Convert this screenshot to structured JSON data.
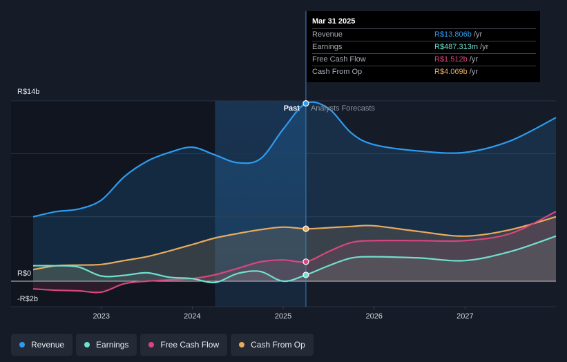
{
  "chart_data": {
    "type": "area",
    "y_unit_prefix": "R$",
    "y_tick_labels": [
      "R$14b",
      "R$0",
      "-R$2b"
    ],
    "ylim": [
      -2,
      14
    ],
    "x_tick_labels": [
      "2023",
      "2024",
      "2025",
      "2026",
      "2027"
    ],
    "xlim": [
      2022.25,
      2028.0
    ],
    "divider_x": 2025.25,
    "past_shade_start": 2024.25,
    "region_labels": {
      "past": "Past",
      "forecast": "Analysts Forecasts"
    },
    "colors": {
      "revenue": "#2d9cf0",
      "earnings": "#6fe0d0",
      "free_cash_flow": "#d9467e",
      "cash_from_op": "#e8ab5e"
    },
    "series": [
      {
        "key": "revenue",
        "name": "Revenue",
        "x": [
          2022.25,
          2022.5,
          2022.75,
          2023.0,
          2023.25,
          2023.5,
          2023.75,
          2024.0,
          2024.25,
          2024.5,
          2024.75,
          2025.0,
          2025.25,
          2025.5,
          2025.75,
          2026.0,
          2026.5,
          2027.0,
          2027.5,
          2028.0
        ],
        "values": [
          5.0,
          5.4,
          5.6,
          6.3,
          8.1,
          9.3,
          10.0,
          10.4,
          9.8,
          9.2,
          9.5,
          11.8,
          13.806,
          13.4,
          11.5,
          10.6,
          10.1,
          10.0,
          10.9,
          12.7
        ]
      },
      {
        "key": "earnings",
        "name": "Earnings",
        "x": [
          2022.25,
          2022.5,
          2022.75,
          2023.0,
          2023.25,
          2023.5,
          2023.75,
          2024.0,
          2024.25,
          2024.5,
          2024.75,
          2025.0,
          2025.25,
          2025.5,
          2025.75,
          2026.0,
          2026.5,
          2027.0,
          2027.5,
          2028.0
        ],
        "values": [
          1.2,
          1.2,
          1.1,
          0.4,
          0.45,
          0.65,
          0.3,
          0.2,
          -0.1,
          0.6,
          0.75,
          0.0,
          0.487,
          1.2,
          1.8,
          1.9,
          1.8,
          1.6,
          2.3,
          3.5
        ]
      },
      {
        "key": "free_cash_flow",
        "name": "Free Cash Flow",
        "x": [
          2022.25,
          2022.5,
          2022.75,
          2023.0,
          2023.25,
          2023.5,
          2023.75,
          2024.0,
          2024.25,
          2024.5,
          2024.75,
          2025.0,
          2025.25,
          2025.5,
          2025.75,
          2026.0,
          2026.5,
          2027.0,
          2027.5,
          2028.0
        ],
        "values": [
          -0.6,
          -0.7,
          -0.75,
          -0.85,
          -0.2,
          0.0,
          0.1,
          0.2,
          0.5,
          1.0,
          1.5,
          1.65,
          1.512,
          2.3,
          3.0,
          3.15,
          3.15,
          3.15,
          3.7,
          5.4
        ]
      },
      {
        "key": "cash_from_op",
        "name": "Cash From Op",
        "x": [
          2022.25,
          2022.5,
          2022.75,
          2023.0,
          2023.25,
          2023.5,
          2023.75,
          2024.0,
          2024.25,
          2024.5,
          2024.75,
          2025.0,
          2025.25,
          2025.5,
          2025.75,
          2026.0,
          2026.5,
          2027.0,
          2027.5,
          2028.0
        ],
        "values": [
          0.9,
          1.2,
          1.25,
          1.3,
          1.6,
          1.9,
          2.35,
          2.85,
          3.35,
          3.7,
          4.0,
          4.2,
          4.069,
          4.15,
          4.25,
          4.3,
          3.85,
          3.5,
          4.0,
          5.0
        ]
      }
    ],
    "tooltip": {
      "date": "Mar 31 2025",
      "rows": [
        {
          "key": "revenue",
          "name": "Revenue",
          "value": "R$13.806b",
          "unit": " /yr"
        },
        {
          "key": "earnings",
          "name": "Earnings",
          "value": "R$487.313m",
          "unit": " /yr"
        },
        {
          "key": "free_cash_flow",
          "name": "Free Cash Flow",
          "value": "R$1.512b",
          "unit": " /yr"
        },
        {
          "key": "cash_from_op",
          "name": "Cash From Op",
          "value": "R$4.069b",
          "unit": " /yr"
        }
      ]
    },
    "legend": [
      {
        "key": "revenue",
        "label": "Revenue"
      },
      {
        "key": "earnings",
        "label": "Earnings"
      },
      {
        "key": "free_cash_flow",
        "label": "Free Cash Flow"
      },
      {
        "key": "cash_from_op",
        "label": "Cash From Op"
      }
    ]
  }
}
